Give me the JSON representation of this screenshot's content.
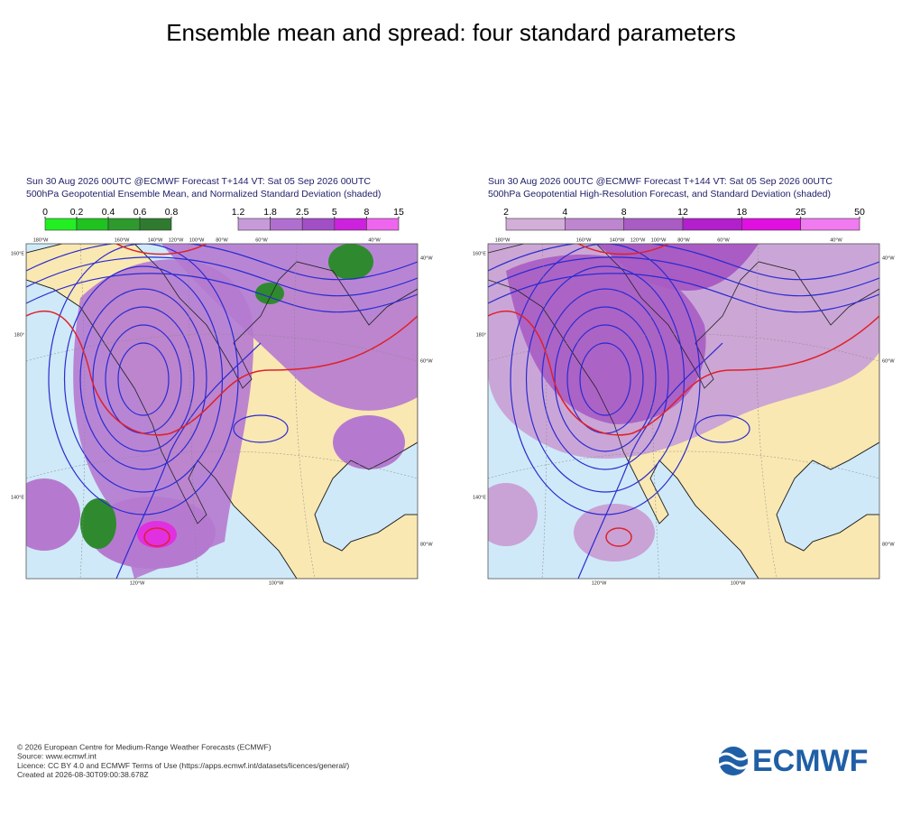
{
  "title": "Ensemble mean and spread: four standard parameters",
  "panels": [
    {
      "header": [
        "Sun 30 Aug 2026 00UTC @ECMWF Forecast T+144 VT: Sat 05 Sep 2026 00UTC",
        "500hPa Geopotential Ensemble Mean, and Normalized Standard Deviation (shaded)"
      ],
      "colorbars": [
        {
          "ticks": [
            0,
            0.2,
            0.4,
            0.6,
            0.8
          ],
          "colors": [
            "#22ee22",
            "#1fc21f",
            "#2e9a2e",
            "#2f7a2f"
          ]
        },
        {
          "ticks": [
            1.2,
            1.8,
            2.5,
            5,
            8,
            15
          ],
          "colors": [
            "#c79bd9",
            "#b06fd0",
            "#a24fc6",
            "#cc22dd",
            "#ee66ee"
          ]
        }
      ],
      "top_labels": [
        "180°W",
        "160°W",
        "140°W",
        "120°W",
        "100°W",
        "80°W",
        "60°W",
        "40°W"
      ],
      "left_labels": [
        "160°E",
        "180°",
        "140°E"
      ],
      "right_labels": [
        "40°W",
        "60°W",
        "80°W"
      ],
      "bottom_labels": [
        "120°W",
        "100°W"
      ]
    },
    {
      "header": [
        "Sun 30 Aug 2026 00UTC @ECMWF Forecast T+144 VT: Sat 05 Sep 2026 00UTC",
        "500hPa Geopotential High-Resolution Forecast, and Standard Deviation (shaded)"
      ],
      "colorbars": [
        {
          "ticks": [
            2,
            4,
            8,
            12,
            18,
            25,
            50
          ],
          "colors": [
            "#d2aed8",
            "#bd86cf",
            "#a95cc4",
            "#b21fcc",
            "#e010e0",
            "#f07af0"
          ]
        }
      ],
      "top_labels": [
        "180°W",
        "160°W",
        "140°W",
        "120°W",
        "100°W",
        "80°W",
        "60°W",
        "40°W"
      ],
      "left_labels": [
        "160°E",
        "180°",
        "140°E"
      ],
      "right_labels": [
        "40°W",
        "60°W",
        "80°W"
      ],
      "bottom_labels": [
        "120°W",
        "100°W"
      ]
    }
  ],
  "footer": [
    "© 2026 European Centre for Medium-Range Weather Forecasts (ECMWF)",
    "Source: www.ecmwf.int",
    "Licence: CC BY 4.0 and ECMWF Terms of Use (https://apps.ecmwf.int/datasets/licences/general/)",
    "Created at 2026-08-30T09:00:38.678Z"
  ],
  "logo": "ECMWF"
}
